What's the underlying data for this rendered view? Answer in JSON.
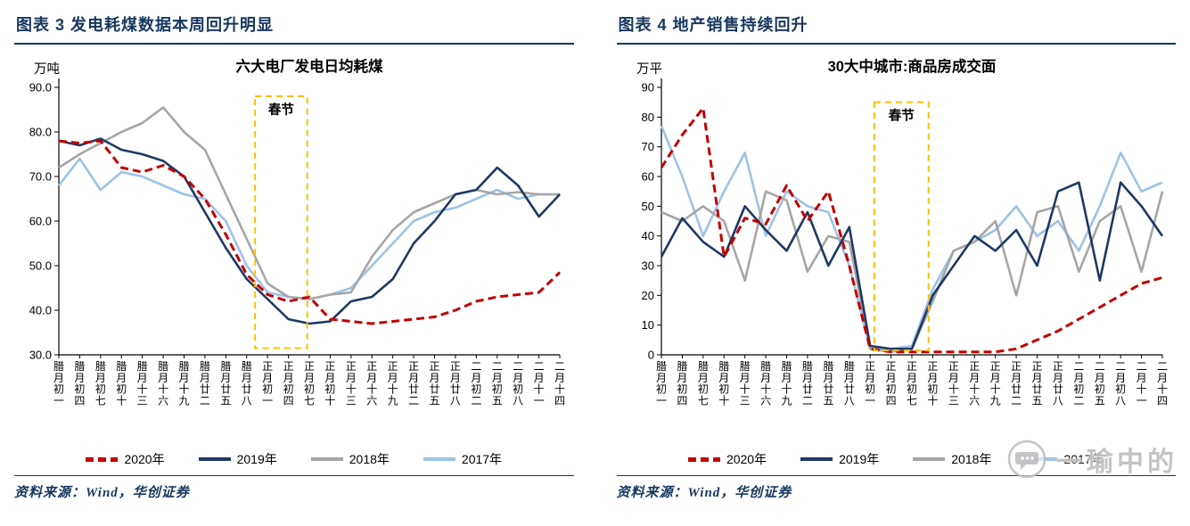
{
  "theme": {
    "accent": "#17375E",
    "background": "#FFFFFF",
    "annotation_color": "#FFC000"
  },
  "watermark": {
    "text": "一瑜中的",
    "icon": "chat-bubble-hand-icon"
  },
  "panels": [
    {
      "header": "图表 3  发电耗煤数据本周回升明显",
      "source": "资料来源：Wind，华创证券"
    },
    {
      "header": "图表 4  地产销售持续回升",
      "source": "资料来源：Wind，华创证券"
    }
  ],
  "chart_data": [
    {
      "type": "line",
      "title": "六大电厂发电日均耗煤",
      "unit_label": "万吨",
      "ylim": [
        30,
        90
      ],
      "yticks": [
        "30.0",
        "40.0",
        "50.0",
        "60.0",
        "70.0",
        "80.0",
        "90.0"
      ],
      "grid": false,
      "legend_position": "bottom",
      "categories": [
        "腊月初一",
        "腊月初四",
        "腊月初七",
        "腊月初十",
        "腊月十三",
        "腊月十六",
        "腊月十九",
        "腊月廿二",
        "腊月廿五",
        "腊月廿八",
        "正月初一",
        "正月初四",
        "正月初七",
        "正月初十",
        "正月十三",
        "正月十六",
        "正月十九",
        "正月廿二",
        "正月廿五",
        "正月廿八",
        "二月初二",
        "二月初五",
        "二月初八",
        "二月十一",
        "二月十四"
      ],
      "series": [
        {
          "name": "2020年",
          "color": "#C00000",
          "style": "dashed",
          "values": [
            78,
            77.5,
            78,
            72,
            71,
            72.5,
            70,
            65,
            57,
            48,
            43.5,
            42,
            43,
            38,
            37.5,
            37,
            37.5,
            38,
            38.5,
            40,
            42,
            43,
            43.5,
            44,
            48.5
          ]
        },
        {
          "name": "2019年",
          "color": "#1F3864",
          "style": "solid",
          "values": [
            78,
            77,
            78.5,
            76,
            75,
            73.5,
            70,
            62,
            54,
            47,
            42.5,
            38,
            37,
            37.5,
            42,
            43,
            47,
            55,
            60,
            66,
            67,
            72,
            68,
            61,
            66
          ]
        },
        {
          "name": "2018年",
          "color": "#A6A6A6",
          "style": "solid",
          "values": [
            72,
            75,
            77.5,
            80,
            82,
            85.5,
            80,
            76,
            66,
            56,
            46,
            43,
            42.5,
            43.5,
            44,
            52,
            58,
            62,
            64,
            66,
            67,
            66,
            66.5,
            66,
            66
          ]
        },
        {
          "name": "2017年",
          "color": "#9DC3E6",
          "style": "solid",
          "values": [
            68,
            74,
            67,
            71,
            70,
            68,
            66,
            65,
            60,
            50,
            44,
            43,
            42.5,
            43.5,
            45,
            50,
            55,
            60,
            62,
            63,
            65,
            67,
            65,
            66,
            66
          ]
        }
      ],
      "annotation": {
        "label": "春节",
        "x_start": 9.4,
        "x_end": 11.9,
        "y_start": 31.5,
        "y_end": 88,
        "color": "#FFC000"
      }
    },
    {
      "type": "line",
      "title": "30大中城市:商品房成交面",
      "unit_label": "万平",
      "ylim": [
        0,
        90
      ],
      "yticks": [
        "0",
        "10",
        "20",
        "30",
        "40",
        "50",
        "60",
        "70",
        "80",
        "90"
      ],
      "grid": false,
      "legend_position": "bottom",
      "categories": [
        "腊月初一",
        "腊月初四",
        "腊月初七",
        "腊月初十",
        "腊月十三",
        "腊月十六",
        "腊月十九",
        "腊月廿二",
        "腊月廿五",
        "腊月廿八",
        "正月初一",
        "正月初四",
        "正月初七",
        "正月初十",
        "正月十三",
        "正月十六",
        "正月十九",
        "正月廿二",
        "正月廿五",
        "正月廿八",
        "二月初二",
        "二月初五",
        "二月初八",
        "二月十一",
        "二月十四"
      ],
      "series": [
        {
          "name": "2020年",
          "color": "#C00000",
          "style": "dashed",
          "values": [
            63,
            74,
            83,
            33,
            46,
            44,
            57,
            45,
            55,
            30,
            2,
            1,
            1,
            1,
            1,
            1,
            1,
            2,
            5,
            8,
            12,
            16,
            20,
            24,
            26
          ]
        },
        {
          "name": "2019年",
          "color": "#1F3864",
          "style": "solid",
          "values": [
            33,
            46,
            38,
            33,
            50,
            42,
            35,
            48,
            30,
            43,
            3,
            2,
            2,
            20,
            30,
            40,
            35,
            42,
            30,
            55,
            58,
            25,
            58,
            50,
            40
          ]
        },
        {
          "name": "2018年",
          "color": "#A6A6A6",
          "style": "solid",
          "values": [
            48,
            45,
            50,
            45,
            25,
            55,
            52,
            28,
            40,
            38,
            2,
            1,
            2,
            18,
            35,
            38,
            45,
            20,
            48,
            50,
            28,
            45,
            50,
            28,
            55
          ]
        },
        {
          "name": "2017年",
          "color": "#9DC3E6",
          "style": "solid",
          "values": [
            77,
            60,
            40,
            55,
            68,
            40,
            55,
            50,
            48,
            30,
            2,
            2,
            3,
            22,
            35,
            38,
            42,
            50,
            40,
            45,
            35,
            50,
            68,
            55,
            58
          ]
        }
      ],
      "annotation": {
        "label": "春节",
        "x_start": 10.2,
        "x_end": 12.8,
        "y_start": 1.5,
        "y_end": 85,
        "color": "#FFC000"
      }
    }
  ]
}
